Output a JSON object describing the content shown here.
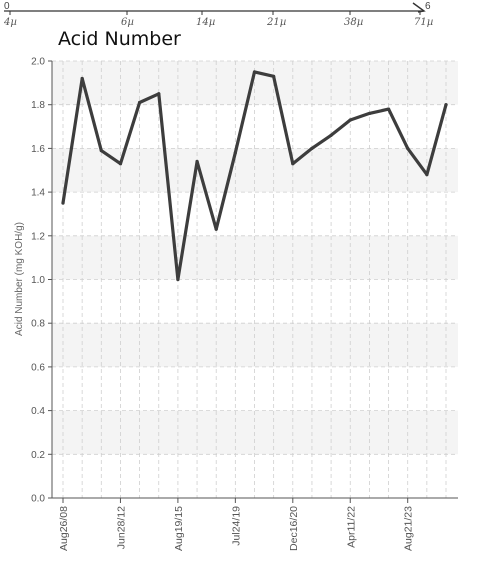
{
  "top_strip": {
    "left_value": "0",
    "right_value": "6",
    "labels": [
      "4µ",
      "6µ",
      "14µ",
      "21µ",
      "38µ",
      "71µ"
    ]
  },
  "colors": {
    "line": "#3d3d3d",
    "band": "#f4f4f4",
    "grid": "#cfcfcf",
    "axis": "#555555"
  },
  "chart_data": {
    "type": "line",
    "title": "Acid Number",
    "xlabel": "",
    "ylabel": "Acid Number (mg KOH/g)",
    "ylim": [
      0,
      2.0
    ],
    "yticks": [
      "0.0",
      "0.2",
      "0.4",
      "0.6",
      "0.8",
      "1.0",
      "1.2",
      "1.4",
      "1.6",
      "1.8",
      "2.0"
    ],
    "xtick_labels": [
      "Aug26/08",
      "Jun28/12",
      "Aug19/15",
      "Jul24/19",
      "Dec16/20",
      "Apr11/22",
      "Aug21/23"
    ],
    "grid": true,
    "series": [
      {
        "values": [
          1.35,
          1.92,
          1.59,
          1.53,
          1.81,
          1.85,
          1.0,
          1.54,
          1.23,
          1.58,
          1.95,
          1.93,
          1.53,
          1.6,
          1.66,
          1.73,
          1.76,
          1.78,
          1.6,
          1.48,
          1.8
        ]
      }
    ]
  }
}
